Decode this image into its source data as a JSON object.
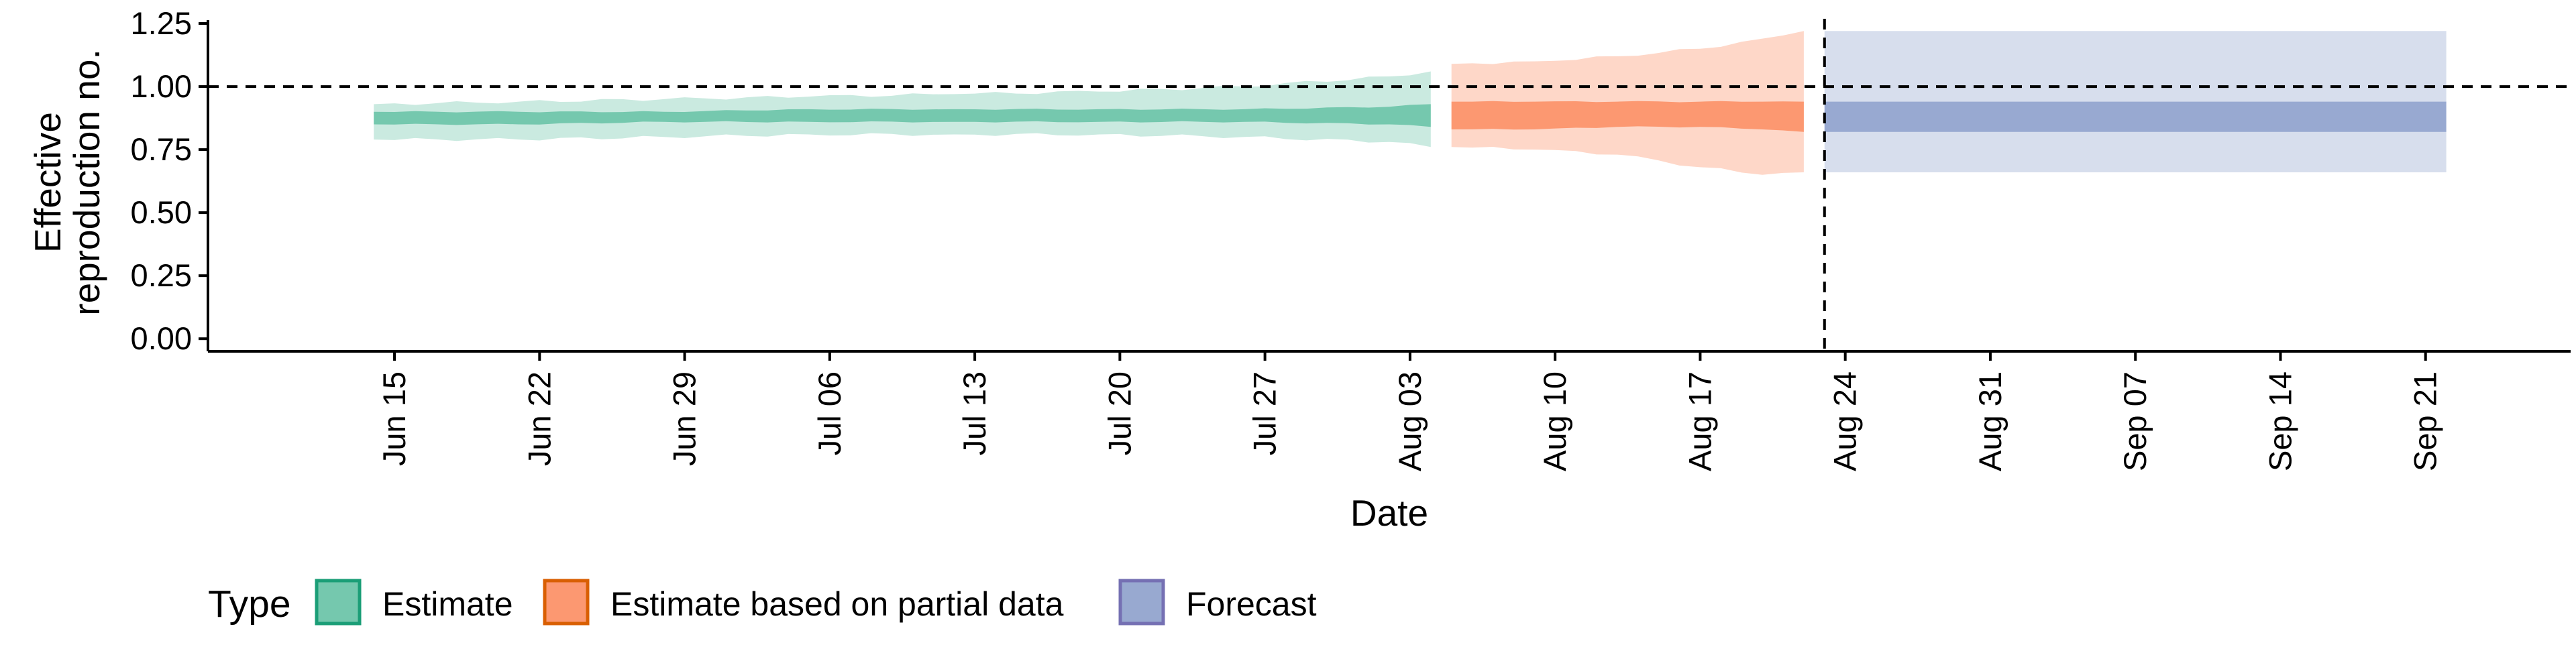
{
  "chart_data": {
    "type": "area",
    "xlabel": "Date",
    "ylabel_lines": [
      "Effective",
      "reproduction no."
    ],
    "ylim": [
      -0.05,
      1.29
    ],
    "xlim": [
      "2020-06-06",
      "2020-09-28"
    ],
    "y_ticks": [
      "0.00",
      "0.25",
      "0.50",
      "0.75",
      "1.00",
      "1.25"
    ],
    "x_ticks": [
      {
        "date": "2020-06-15",
        "label": "Jun 15"
      },
      {
        "date": "2020-06-22",
        "label": "Jun 22"
      },
      {
        "date": "2020-06-29",
        "label": "Jun 29"
      },
      {
        "date": "2020-07-06",
        "label": "Jul 06"
      },
      {
        "date": "2020-07-13",
        "label": "Jul 13"
      },
      {
        "date": "2020-07-20",
        "label": "Jul 20"
      },
      {
        "date": "2020-07-27",
        "label": "Jul 27"
      },
      {
        "date": "2020-08-03",
        "label": "Aug 03"
      },
      {
        "date": "2020-08-10",
        "label": "Aug 10"
      },
      {
        "date": "2020-08-17",
        "label": "Aug 17"
      },
      {
        "date": "2020-08-24",
        "label": "Aug 24"
      },
      {
        "date": "2020-08-31",
        "label": "Aug 31"
      },
      {
        "date": "2020-09-07",
        "label": "Sep 07"
      },
      {
        "date": "2020-09-14",
        "label": "Sep 14"
      },
      {
        "date": "2020-09-21",
        "label": "Sep 21"
      }
    ],
    "reference_line_y": 1.0,
    "forecast_start_date": "2020-08-23",
    "grid": false,
    "legend": {
      "position": "bottom",
      "title": "Type"
    },
    "series": [
      {
        "name": "Estimate",
        "fill": "#66c2a5",
        "stroke": "#1b9e77",
        "points": [
          {
            "date": "2020-06-14",
            "lower90": 0.79,
            "lower50": 0.85,
            "upper50": 0.9,
            "upper90": 0.93
          },
          {
            "date": "2020-06-21",
            "lower90": 0.79,
            "lower50": 0.85,
            "upper50": 0.9,
            "upper90": 0.94
          },
          {
            "date": "2020-06-28",
            "lower90": 0.8,
            "lower50": 0.86,
            "upper50": 0.9,
            "upper90": 0.95
          },
          {
            "date": "2020-07-05",
            "lower90": 0.81,
            "lower50": 0.86,
            "upper50": 0.91,
            "upper90": 0.96
          },
          {
            "date": "2020-07-12",
            "lower90": 0.81,
            "lower50": 0.86,
            "upper50": 0.91,
            "upper90": 0.97
          },
          {
            "date": "2020-07-19",
            "lower90": 0.81,
            "lower50": 0.86,
            "upper50": 0.91,
            "upper90": 0.98
          },
          {
            "date": "2020-07-26",
            "lower90": 0.8,
            "lower50": 0.86,
            "upper50": 0.91,
            "upper90": 1.0
          },
          {
            "date": "2020-08-02",
            "lower90": 0.78,
            "lower50": 0.85,
            "upper50": 0.92,
            "upper90": 1.04
          },
          {
            "date": "2020-08-04",
            "lower90": 0.76,
            "lower50": 0.84,
            "upper50": 0.93,
            "upper90": 1.06
          }
        ]
      },
      {
        "name": "Estimate based on partial data",
        "fill": "#fc8d62",
        "stroke": "#d95f02",
        "points": [
          {
            "date": "2020-08-05",
            "lower90": 0.76,
            "lower50": 0.83,
            "upper50": 0.94,
            "upper90": 1.09
          },
          {
            "date": "2020-08-09",
            "lower90": 0.75,
            "lower50": 0.83,
            "upper50": 0.94,
            "upper90": 1.1
          },
          {
            "date": "2020-08-13",
            "lower90": 0.73,
            "lower50": 0.84,
            "upper50": 0.94,
            "upper90": 1.12
          },
          {
            "date": "2020-08-17",
            "lower90": 0.68,
            "lower50": 0.84,
            "upper50": 0.94,
            "upper90": 1.15
          },
          {
            "date": "2020-08-20",
            "lower90": 0.65,
            "lower50": 0.83,
            "upper50": 0.94,
            "upper90": 1.19
          },
          {
            "date": "2020-08-22",
            "lower90": 0.66,
            "lower50": 0.82,
            "upper50": 0.94,
            "upper90": 1.22
          }
        ]
      },
      {
        "name": "Forecast",
        "fill": "#8da0cb",
        "stroke": "#7570b3",
        "points": [
          {
            "date": "2020-08-23",
            "lower90": 0.66,
            "lower50": 0.82,
            "upper50": 0.94,
            "upper90": 1.22
          },
          {
            "date": "2020-09-22",
            "lower90": 0.66,
            "lower50": 0.82,
            "upper50": 0.94,
            "upper90": 1.22
          }
        ]
      }
    ]
  }
}
